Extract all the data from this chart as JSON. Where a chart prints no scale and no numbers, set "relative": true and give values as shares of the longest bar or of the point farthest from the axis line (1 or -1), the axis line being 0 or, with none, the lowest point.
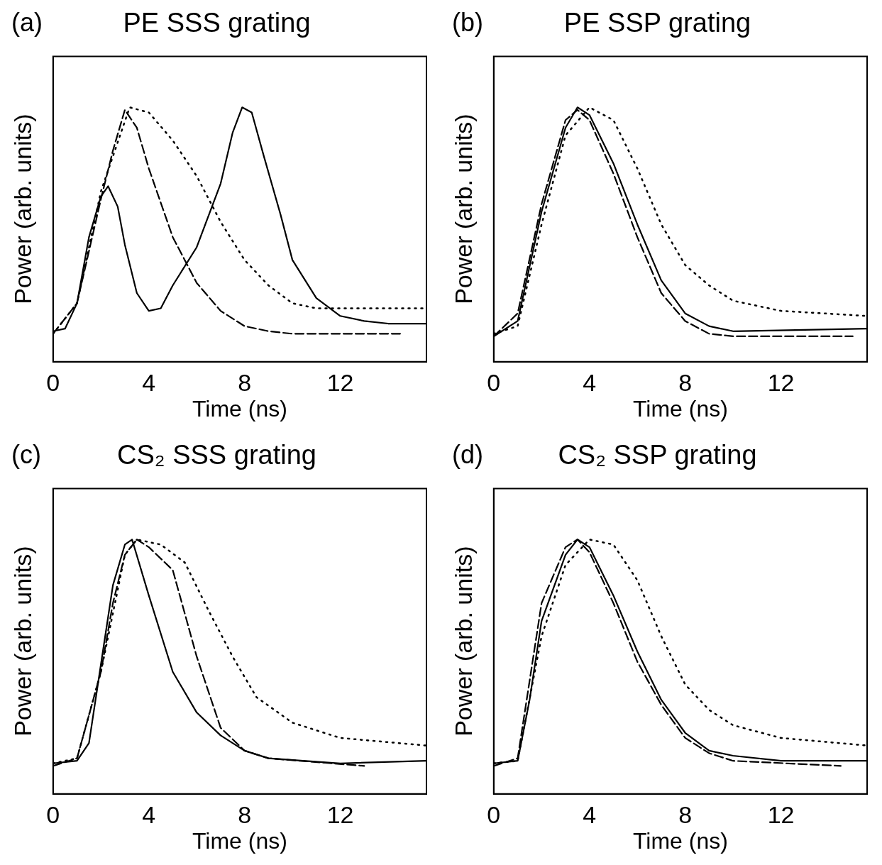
{
  "chart_data": [
    {
      "type": "line",
      "title": "PE SSS grating",
      "xlabel": "Time (ns)",
      "ylabel": "Power (arb. units)",
      "annotations": [
        "(a)"
      ],
      "relative": true,
      "xlim": [
        0,
        15.6
      ],
      "xticks": [
        0,
        4,
        8,
        12
      ],
      "grid": false,
      "legend": false,
      "marker": "none",
      "series": [
        {
          "color": "#000000",
          "line_style": "solid",
          "x": [
            0,
            0.5,
            1,
            1.5,
            2,
            2.3,
            2.7,
            3,
            3.5,
            4,
            4.5,
            5,
            6,
            7,
            7.5,
            7.9,
            8.3,
            8.8,
            9.5,
            10,
            11,
            12,
            13,
            14,
            15.6
          ],
          "values": [
            0.12,
            0.13,
            0.23,
            0.49,
            0.65,
            0.69,
            0.61,
            0.46,
            0.27,
            0.2,
            0.21,
            0.3,
            0.45,
            0.7,
            0.9,
            1.0,
            0.98,
            0.81,
            0.58,
            0.4,
            0.25,
            0.18,
            0.16,
            0.15,
            0.15
          ]
        },
        {
          "color": "#000000",
          "line_style": "dashed",
          "x": [
            0,
            1,
            2,
            2.5,
            3,
            3.5,
            4,
            5,
            6,
            7,
            8,
            9,
            10,
            14.5
          ],
          "values": [
            0.11,
            0.23,
            0.64,
            0.83,
            0.99,
            0.92,
            0.76,
            0.49,
            0.31,
            0.2,
            0.14,
            0.12,
            0.11,
            0.11
          ]
        },
        {
          "color": "#000000",
          "line_style": "dotted",
          "x": [
            0,
            1,
            2,
            3.2,
            4,
            5,
            6,
            7,
            8,
            9,
            10,
            11,
            12,
            13,
            15.6
          ],
          "values": [
            0.11,
            0.23,
            0.67,
            1.0,
            0.98,
            0.87,
            0.73,
            0.55,
            0.4,
            0.3,
            0.23,
            0.21,
            0.21,
            0.21,
            0.21
          ]
        }
      ]
    },
    {
      "type": "line",
      "title": "PE SSP grating",
      "xlabel": "Time (ns)",
      "ylabel": "Power (arb. units)",
      "annotations": [
        "(b)"
      ],
      "relative": true,
      "xlim": [
        0,
        15.6
      ],
      "xticks": [
        0,
        4,
        8,
        12
      ],
      "grid": false,
      "legend": false,
      "marker": "none",
      "series": [
        {
          "color": "#000000",
          "line_style": "solid",
          "x": [
            0,
            1,
            2,
            3,
            3.5,
            4,
            5,
            6,
            7,
            8,
            9,
            10,
            15.6
          ],
          "values": [
            0.1,
            0.16,
            0.59,
            0.92,
            1.0,
            0.97,
            0.78,
            0.54,
            0.32,
            0.19,
            0.14,
            0.12,
            0.13
          ]
        },
        {
          "color": "#000000",
          "line_style": "dashed",
          "x": [
            0,
            1,
            2,
            3,
            3.5,
            4,
            5,
            6,
            7,
            8,
            9,
            10,
            15
          ],
          "values": [
            0.1,
            0.19,
            0.62,
            0.95,
            0.99,
            0.95,
            0.74,
            0.49,
            0.27,
            0.16,
            0.11,
            0.1,
            0.1
          ]
        },
        {
          "color": "#000000",
          "line_style": "dotted",
          "x": [
            0,
            1,
            2,
            3,
            4,
            5,
            6,
            7,
            8,
            9,
            10,
            12,
            15.6
          ],
          "values": [
            0.11,
            0.14,
            0.54,
            0.89,
            1.0,
            0.95,
            0.76,
            0.54,
            0.38,
            0.3,
            0.24,
            0.2,
            0.18
          ]
        }
      ]
    },
    {
      "type": "line",
      "title": "CS₂ SSS grating",
      "xlabel": "Time (ns)",
      "ylabel": "Power (arb. units)",
      "annotations": [
        "(c)"
      ],
      "relative": true,
      "xlim": [
        0,
        15.6
      ],
      "xticks": [
        0,
        4,
        8,
        12
      ],
      "grid": false,
      "legend": false,
      "marker": "none",
      "series": [
        {
          "color": "#000000",
          "line_style": "solid",
          "x": [
            0,
            1,
            1.5,
            2,
            2.5,
            3,
            3.3,
            4,
            5,
            6,
            7,
            8,
            9,
            12,
            15.6
          ],
          "values": [
            0.12,
            0.13,
            0.2,
            0.51,
            0.82,
            0.98,
            1.0,
            0.78,
            0.48,
            0.32,
            0.23,
            0.17,
            0.14,
            0.12,
            0.13
          ]
        },
        {
          "color": "#000000",
          "line_style": "dashed",
          "x": [
            0,
            1,
            2,
            2.5,
            3,
            3.5,
            4,
            5,
            6,
            7,
            8,
            9,
            13
          ],
          "values": [
            0.11,
            0.14,
            0.48,
            0.75,
            0.94,
            1.0,
            0.97,
            0.88,
            0.54,
            0.26,
            0.17,
            0.14,
            0.11
          ]
        },
        {
          "color": "#000000",
          "line_style": "dotted",
          "x": [
            0,
            1,
            2,
            3,
            3.5,
            4.5,
            5.5,
            6.5,
            7.5,
            8.5,
            10,
            12,
            15.6
          ],
          "values": [
            0.12,
            0.14,
            0.48,
            0.94,
            1.0,
            0.98,
            0.91,
            0.72,
            0.54,
            0.38,
            0.28,
            0.22,
            0.19
          ]
        }
      ]
    },
    {
      "type": "line",
      "title": "CS₂ SSP grating",
      "xlabel": "Time (ns)",
      "ylabel": "Power (arb. units)",
      "annotations": [
        "(d)"
      ],
      "relative": true,
      "xlim": [
        0,
        15.6
      ],
      "xticks": [
        0,
        4,
        8,
        12
      ],
      "grid": false,
      "legend": false,
      "marker": "none",
      "series": [
        {
          "color": "#000000",
          "line_style": "solid",
          "x": [
            0,
            1,
            1.5,
            2,
            3,
            3.5,
            4,
            5,
            6,
            7,
            8,
            9,
            10,
            12,
            15.6
          ],
          "values": [
            0.12,
            0.13,
            0.37,
            0.68,
            0.94,
            1.0,
            0.97,
            0.78,
            0.56,
            0.37,
            0.24,
            0.17,
            0.15,
            0.13,
            0.13
          ]
        },
        {
          "color": "#000000",
          "line_style": "dashed",
          "x": [
            0,
            1,
            2,
            3,
            3.5,
            4,
            5,
            6,
            7,
            8,
            9,
            10,
            14.5
          ],
          "values": [
            0.11,
            0.14,
            0.75,
            0.97,
            1.0,
            0.95,
            0.75,
            0.52,
            0.35,
            0.22,
            0.16,
            0.13,
            0.11
          ]
        },
        {
          "color": "#000000",
          "line_style": "dotted",
          "x": [
            0,
            1,
            2,
            3,
            4,
            5,
            6,
            7,
            8,
            9,
            10,
            12,
            15.6
          ],
          "values": [
            0.12,
            0.13,
            0.62,
            0.9,
            1.0,
            0.98,
            0.84,
            0.62,
            0.43,
            0.33,
            0.27,
            0.22,
            0.19
          ]
        }
      ]
    }
  ]
}
